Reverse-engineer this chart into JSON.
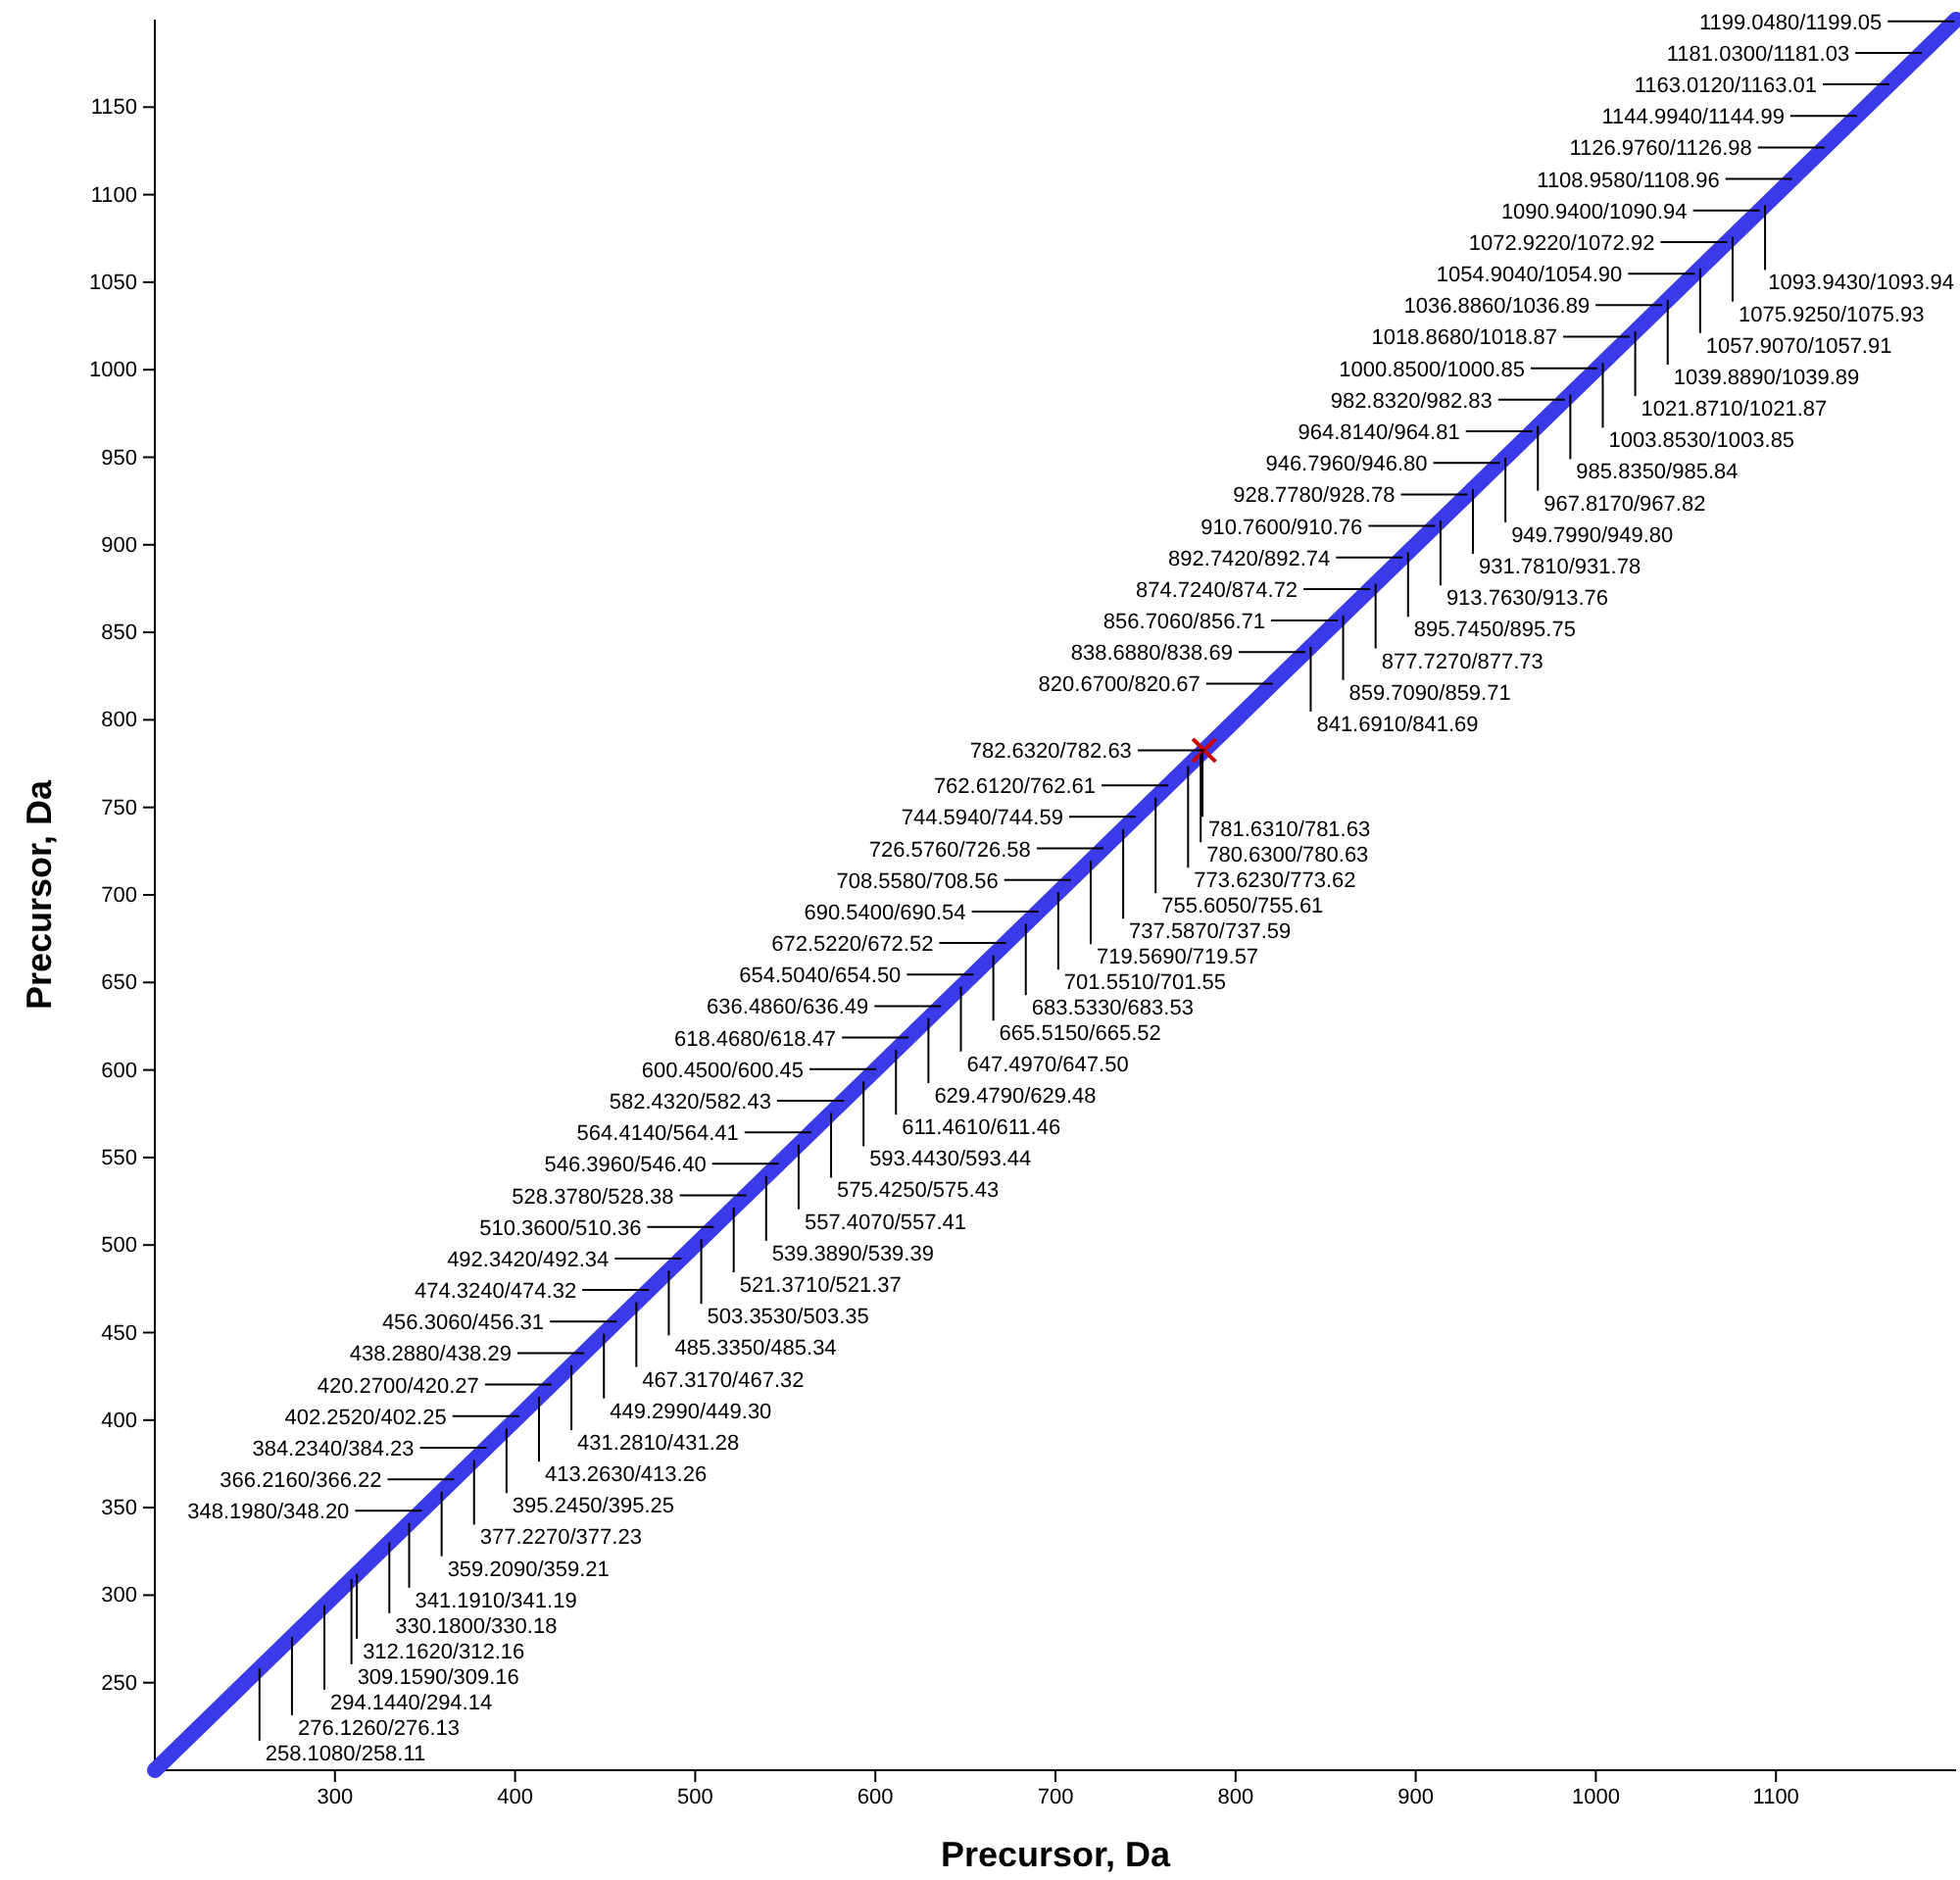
{
  "chart_data": {
    "type": "scatter",
    "xlabel": "Precursor, Da",
    "ylabel": "Precursor, Da",
    "xlim": [
      200,
      1200
    ],
    "ylim": [
      200,
      1200
    ],
    "xticks": [
      300,
      400,
      500,
      600,
      700,
      800,
      900,
      1000,
      1100
    ],
    "yticks": [
      250,
      300,
      350,
      400,
      450,
      500,
      550,
      600,
      650,
      700,
      750,
      800,
      850,
      900,
      950,
      1000,
      1050,
      1100,
      1150
    ],
    "grid": false,
    "series": [
      {
        "type": "line",
        "color": "#3a3ae8",
        "marker": "none",
        "line_style": "solid",
        "x": [
          200,
          1200
        ],
        "values": [
          200,
          1200
        ]
      },
      {
        "color": "#cc0000",
        "marker": "cross",
        "x": [
          782.6
        ],
        "values": [
          782.6
        ]
      }
    ],
    "annotations": [
      {
        "text": "1199.0480/1199.05",
        "x": 1199.048,
        "y": 1199.05
      },
      {
        "text": "1181.0300/1181.03",
        "x": 1181.03,
        "y": 1181.03
      },
      {
        "text": "1163.0120/1163.01",
        "x": 1163.012,
        "y": 1163.01
      },
      {
        "text": "1144.9940/1144.99",
        "x": 1144.994,
        "y": 1144.99
      },
      {
        "text": "1126.9760/1126.98",
        "x": 1126.976,
        "y": 1126.98
      },
      {
        "text": "1108.9580/1108.96",
        "x": 1108.958,
        "y": 1108.96
      },
      {
        "text": "1093.9430/1093.94",
        "x": 1093.943,
        "y": 1093.94
      },
      {
        "text": "1090.9400/1090.94",
        "x": 1090.94,
        "y": 1090.94
      },
      {
        "text": "1075.9250/1075.93",
        "x": 1075.925,
        "y": 1075.93
      },
      {
        "text": "1072.9220/1072.92",
        "x": 1072.922,
        "y": 1072.92
      },
      {
        "text": "1057.9070/1057.91",
        "x": 1057.907,
        "y": 1057.91
      },
      {
        "text": "1054.9040/1054.90",
        "x": 1054.904,
        "y": 1054.9
      },
      {
        "text": "1039.8890/1039.89",
        "x": 1039.889,
        "y": 1039.89
      },
      {
        "text": "1036.8860/1036.89",
        "x": 1036.886,
        "y": 1036.89
      },
      {
        "text": "1021.8710/1021.87",
        "x": 1021.871,
        "y": 1021.87
      },
      {
        "text": "1018.8680/1018.87",
        "x": 1018.868,
        "y": 1018.87
      },
      {
        "text": "1003.8530/1003.85",
        "x": 1003.853,
        "y": 1003.85
      },
      {
        "text": "1000.8500/1000.85",
        "x": 1000.85,
        "y": 1000.85
      },
      {
        "text": "985.8350/985.84",
        "x": 985.835,
        "y": 985.84
      },
      {
        "text": "982.8320/982.83",
        "x": 982.832,
        "y": 982.83
      },
      {
        "text": "967.8170/967.82",
        "x": 967.817,
        "y": 967.82
      },
      {
        "text": "964.8140/964.81",
        "x": 964.814,
        "y": 964.81
      },
      {
        "text": "949.7990/949.80",
        "x": 949.799,
        "y": 949.8
      },
      {
        "text": "946.7960/946.80",
        "x": 946.796,
        "y": 946.8
      },
      {
        "text": "931.7810/931.78",
        "x": 931.781,
        "y": 931.78
      },
      {
        "text": "928.7780/928.78",
        "x": 928.778,
        "y": 928.78
      },
      {
        "text": "913.7630/913.76",
        "x": 913.763,
        "y": 913.76
      },
      {
        "text": "910.7600/910.76",
        "x": 910.76,
        "y": 910.76
      },
      {
        "text": "895.7450/895.75",
        "x": 895.745,
        "y": 895.75
      },
      {
        "text": "892.7420/892.74",
        "x": 892.742,
        "y": 892.74
      },
      {
        "text": "877.7270/877.73",
        "x": 877.727,
        "y": 877.73
      },
      {
        "text": "874.7240/874.72",
        "x": 874.724,
        "y": 874.72
      },
      {
        "text": "859.7090/859.71",
        "x": 859.709,
        "y": 859.71
      },
      {
        "text": "856.7060/856.71",
        "x": 856.706,
        "y": 856.71
      },
      {
        "text": "841.6910/841.69",
        "x": 841.691,
        "y": 841.69
      },
      {
        "text": "838.6880/838.69",
        "x": 838.688,
        "y": 838.69
      },
      {
        "text": "820.6700/820.67",
        "x": 820.67,
        "y": 820.67
      },
      {
        "text": "782.6320/782.63",
        "x": 782.632,
        "y": 782.63
      },
      {
        "text": "781.6310/781.63",
        "x": 781.631,
        "y": 781.63
      },
      {
        "text": "780.6300/780.63",
        "x": 780.63,
        "y": 780.63
      },
      {
        "text": "773.6230/773.62",
        "x": 773.623,
        "y": 773.62
      },
      {
        "text": "762.6120/762.61",
        "x": 762.612,
        "y": 762.61
      },
      {
        "text": "755.6050/755.61",
        "x": 755.605,
        "y": 755.61
      },
      {
        "text": "744.5940/744.59",
        "x": 744.594,
        "y": 744.59
      },
      {
        "text": "737.5870/737.59",
        "x": 737.587,
        "y": 737.59
      },
      {
        "text": "726.5760/726.58",
        "x": 726.576,
        "y": 726.58
      },
      {
        "text": "719.5690/719.57",
        "x": 719.569,
        "y": 719.57
      },
      {
        "text": "708.5580/708.56",
        "x": 708.558,
        "y": 708.56
      },
      {
        "text": "701.5510/701.55",
        "x": 701.551,
        "y": 701.55
      },
      {
        "text": "690.5400/690.54",
        "x": 690.54,
        "y": 690.54
      },
      {
        "text": "683.5330/683.53",
        "x": 683.533,
        "y": 683.53
      },
      {
        "text": "672.5220/672.52",
        "x": 672.522,
        "y": 672.52
      },
      {
        "text": "665.5150/665.52",
        "x": 665.515,
        "y": 665.52
      },
      {
        "text": "654.5040/654.50",
        "x": 654.504,
        "y": 654.5
      },
      {
        "text": "647.4970/647.50",
        "x": 647.497,
        "y": 647.5
      },
      {
        "text": "636.4860/636.49",
        "x": 636.486,
        "y": 636.49
      },
      {
        "text": "629.4790/629.48",
        "x": 629.479,
        "y": 629.48
      },
      {
        "text": "618.4680/618.47",
        "x": 618.468,
        "y": 618.47
      },
      {
        "text": "611.4610/611.46",
        "x": 611.461,
        "y": 611.46
      },
      {
        "text": "600.4500/600.45",
        "x": 600.45,
        "y": 600.45
      },
      {
        "text": "593.4430/593.44",
        "x": 593.443,
        "y": 593.44
      },
      {
        "text": "582.4320/582.43",
        "x": 582.432,
        "y": 582.43
      },
      {
        "text": "575.4250/575.43",
        "x": 575.425,
        "y": 575.43
      },
      {
        "text": "564.4140/564.41",
        "x": 564.414,
        "y": 564.41
      },
      {
        "text": "557.4070/557.41",
        "x": 557.407,
        "y": 557.41
      },
      {
        "text": "546.3960/546.40",
        "x": 546.396,
        "y": 546.4
      },
      {
        "text": "539.3890/539.39",
        "x": 539.389,
        "y": 539.39
      },
      {
        "text": "528.3780/528.38",
        "x": 528.378,
        "y": 528.38
      },
      {
        "text": "521.3710/521.37",
        "x": 521.371,
        "y": 521.37
      },
      {
        "text": "510.3600/510.36",
        "x": 510.36,
        "y": 510.36
      },
      {
        "text": "503.3530/503.35",
        "x": 503.353,
        "y": 503.35
      },
      {
        "text": "492.3420/492.34",
        "x": 492.342,
        "y": 492.34
      },
      {
        "text": "485.3350/485.34",
        "x": 485.335,
        "y": 485.34
      },
      {
        "text": "474.3240/474.32",
        "x": 474.324,
        "y": 474.32
      },
      {
        "text": "467.3170/467.32",
        "x": 467.317,
        "y": 467.32
      },
      {
        "text": "456.3060/456.31",
        "x": 456.306,
        "y": 456.31
      },
      {
        "text": "449.2990/449.30",
        "x": 449.299,
        "y": 449.3
      },
      {
        "text": "438.2880/438.29",
        "x": 438.288,
        "y": 438.29
      },
      {
        "text": "431.2810/431.28",
        "x": 431.281,
        "y": 431.28
      },
      {
        "text": "420.2700/420.27",
        "x": 420.27,
        "y": 420.27
      },
      {
        "text": "413.2630/413.26",
        "x": 413.263,
        "y": 413.26
      },
      {
        "text": "402.2520/402.25",
        "x": 402.252,
        "y": 402.25
      },
      {
        "text": "395.2450/395.25",
        "x": 395.245,
        "y": 395.25
      },
      {
        "text": "384.2340/384.23",
        "x": 384.234,
        "y": 384.23
      },
      {
        "text": "377.2270/377.23",
        "x": 377.227,
        "y": 377.23
      },
      {
        "text": "366.2160/366.22",
        "x": 366.216,
        "y": 366.22
      },
      {
        "text": "359.2090/359.21",
        "x": 359.209,
        "y": 359.21
      },
      {
        "text": "348.1980/348.20",
        "x": 348.198,
        "y": 348.2
      },
      {
        "text": "341.1910/341.19",
        "x": 341.191,
        "y": 341.19
      },
      {
        "text": "330.1800/330.18",
        "x": 330.18,
        "y": 330.18
      },
      {
        "text": "312.1620/312.16",
        "x": 312.162,
        "y": 312.16
      },
      {
        "text": "309.1590/309.16",
        "x": 309.159,
        "y": 309.16
      },
      {
        "text": "294.1440/294.14",
        "x": 294.144,
        "y": 294.14
      },
      {
        "text": "276.1260/276.13",
        "x": 276.126,
        "y": 276.13
      },
      {
        "text": "258.1080/258.11",
        "x": 258.108,
        "y": 258.11
      }
    ]
  }
}
